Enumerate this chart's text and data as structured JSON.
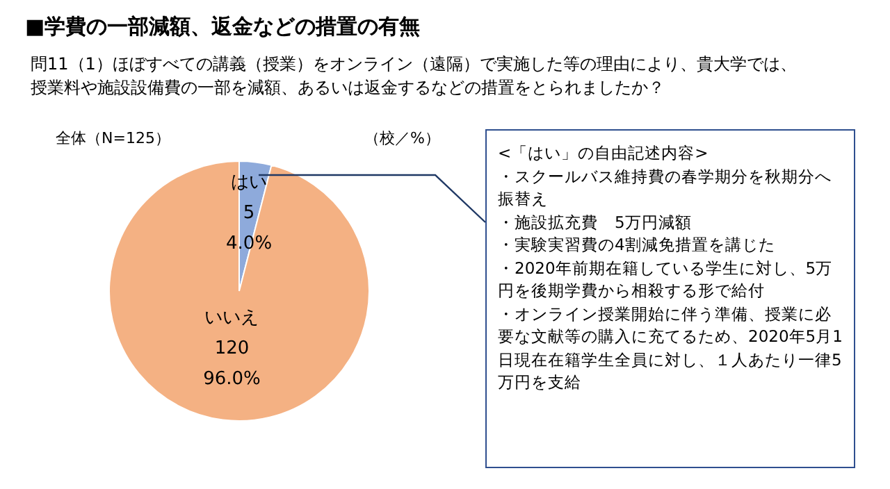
{
  "chart_data": {
    "type": "pie",
    "title": "■学費の一部減額、返金などの措置の有無",
    "subtitle": "問11（1）ほぼすべての講義（授業）をオンライン（遠隔）で実施した等の理由により、貴大学では、授業料や施設設備費の一部を減額、あるいは返金するなどの措置をとられましたか？",
    "categories": [
      "はい",
      "いいえ"
    ],
    "values": [
      5,
      120
    ],
    "colors": [
      "#8eaadb",
      "#f4b183"
    ],
    "value_labels": [
      "5\n4.0%",
      "120\n96.0%"
    ],
    "legend": false,
    "annotations": [
      "全体（N=125）",
      "（校／%）",
      "<「はい」の自由記述内容>",
      "・スクールバス維持費の春学期分を秋期分へ振替え",
      "・施設拡充費　5万円減額",
      "・実験実習費の4割減免措置を講じた",
      "・2020年前期在籍している学生に対し、5万円を後期学費から相殺する形で給付",
      "・オンライン授業開始に伴う準備、授業に必要な文献等の購入に充てるため、2020年5月1日現在在籍学生全員に対し、１人あたり一律5万円を支給"
    ]
  }
}
